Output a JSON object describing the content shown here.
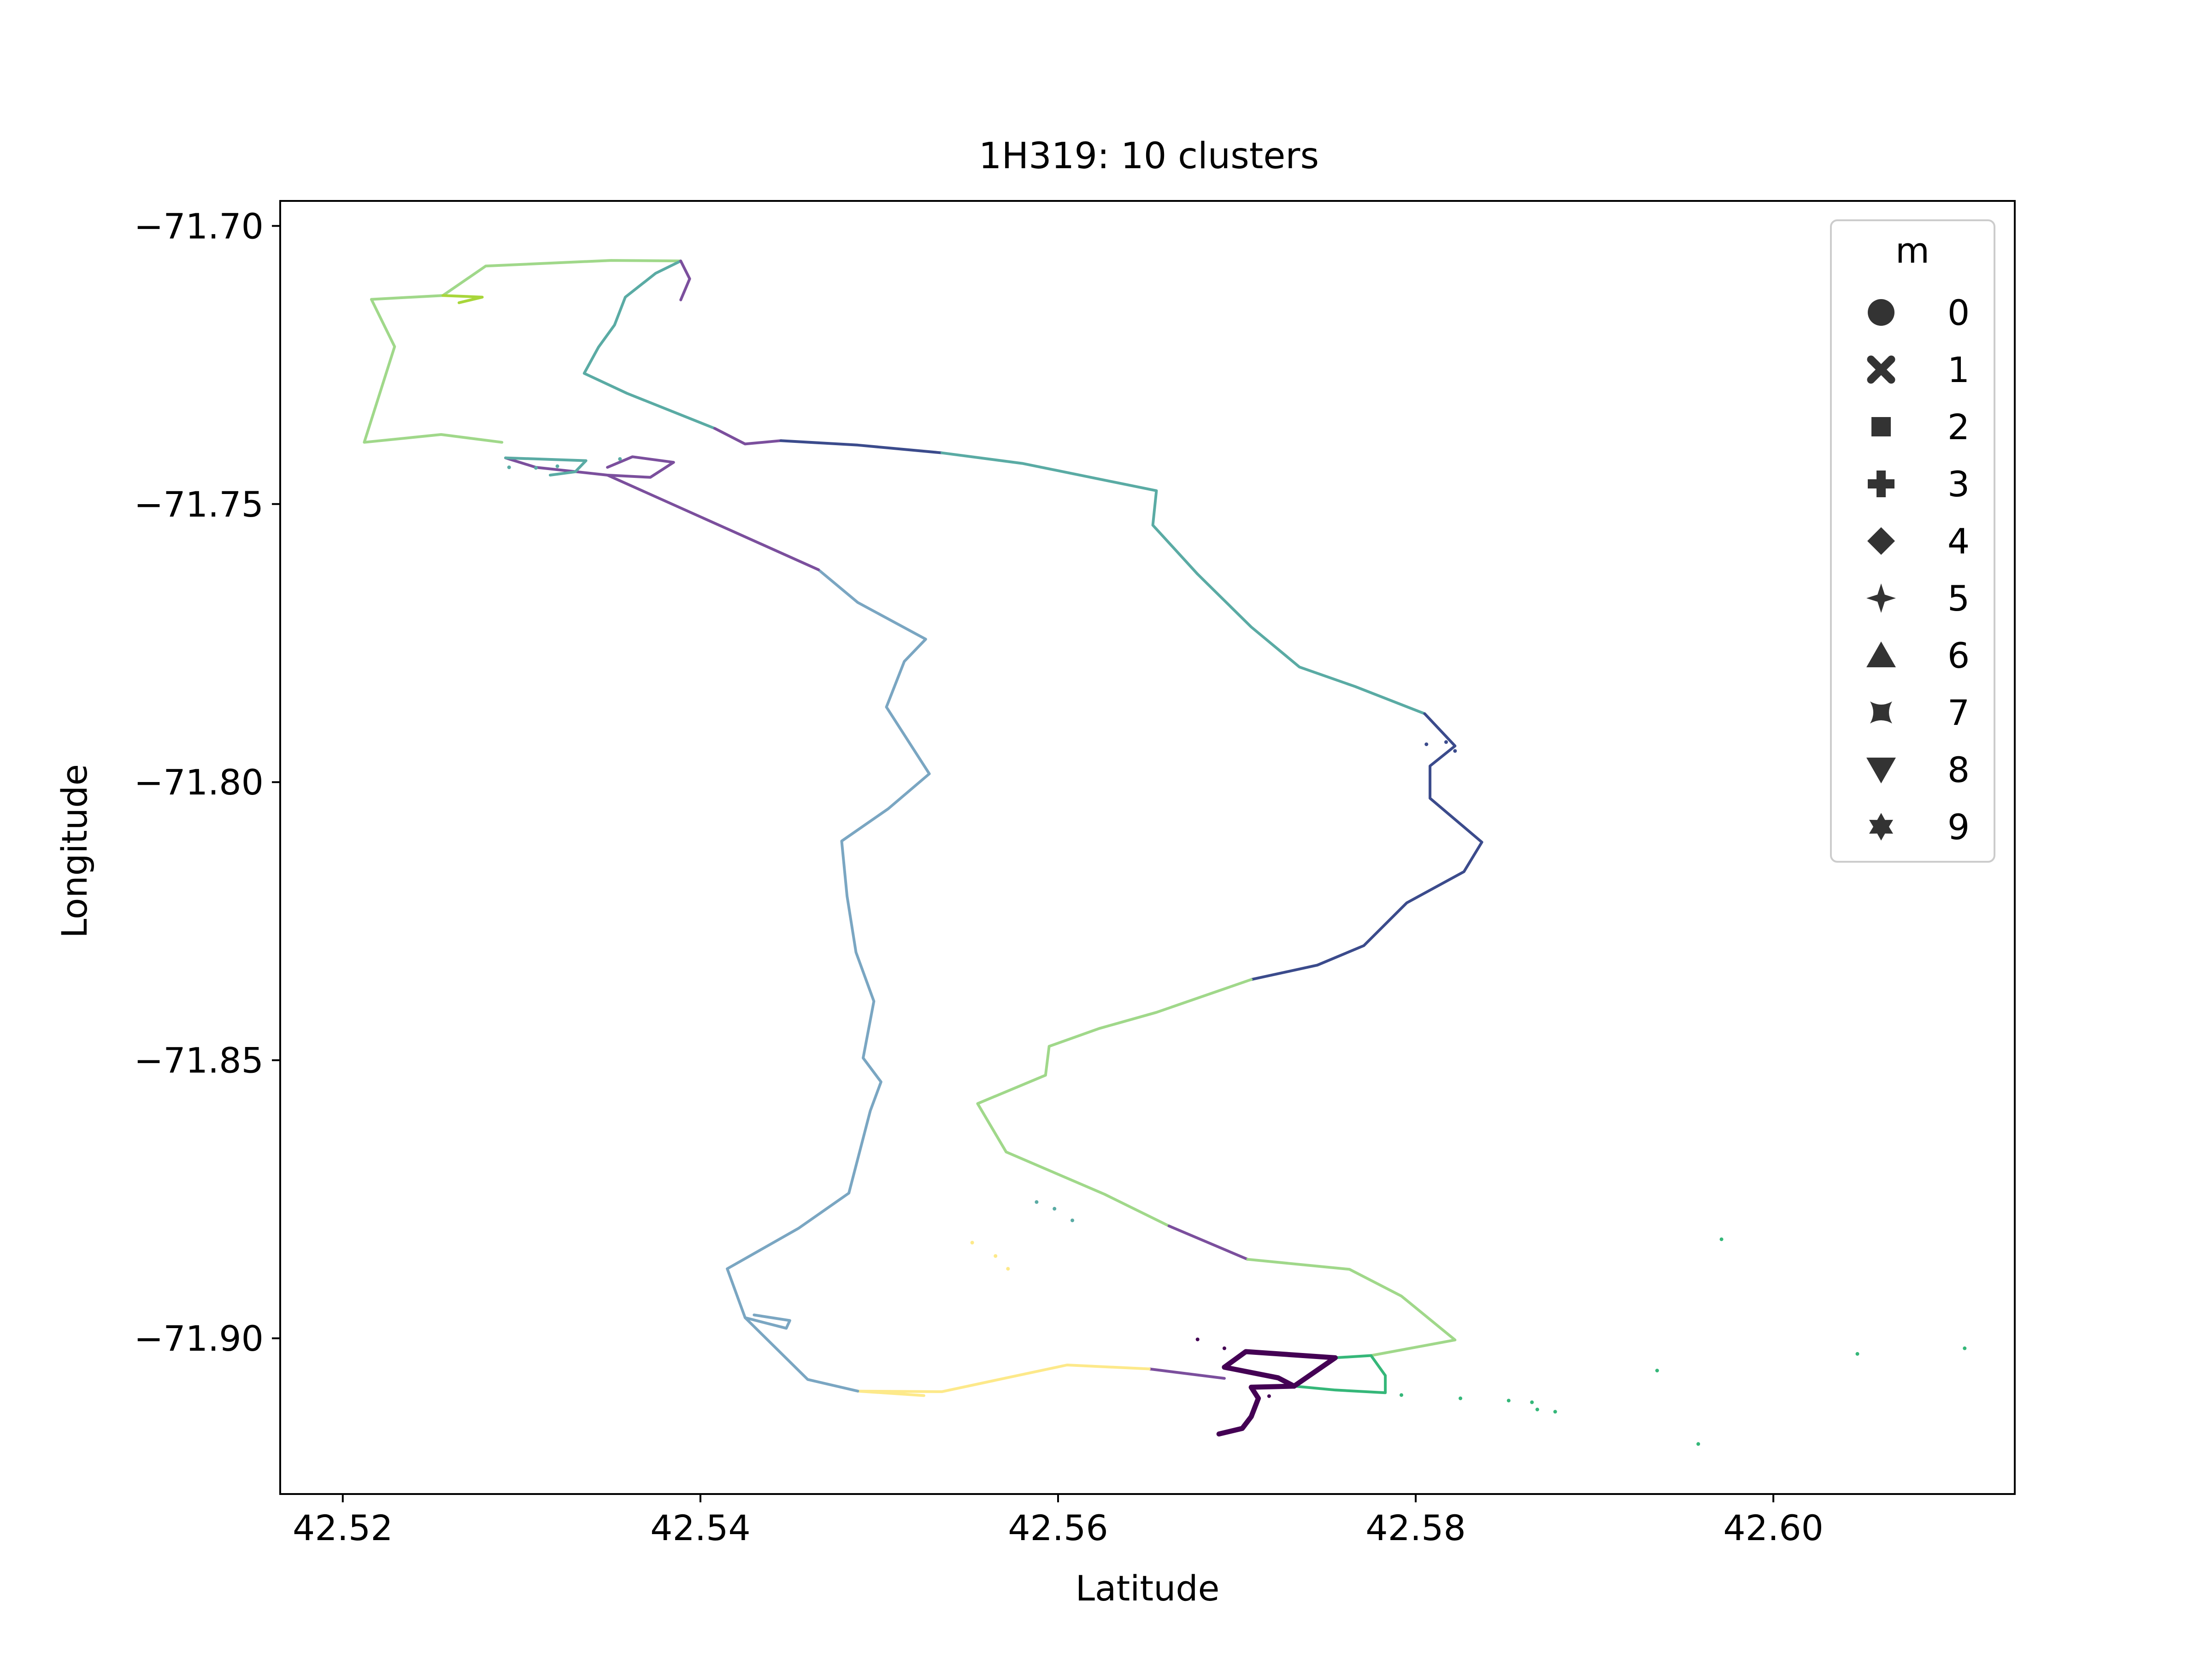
{
  "chart_data": {
    "type": "scatter",
    "title": "1H319: 10 clusters",
    "xlabel": "Latitude",
    "ylabel": "Longitude",
    "xlim": [
      42.5165,
      42.6135
    ],
    "ylim": [
      -71.928,
      -71.6955
    ],
    "x_ticks": [
      42.52,
      42.54,
      42.56,
      42.58,
      42.6
    ],
    "x_tick_labels": [
      "42.52",
      "42.54",
      "42.56",
      "42.58",
      "42.60"
    ],
    "y_ticks": [
      -71.7,
      -71.75,
      -71.8,
      -71.85,
      -71.9
    ],
    "y_tick_labels": [
      "−71.70",
      "−71.75",
      "−71.80",
      "−71.85",
      "−71.90"
    ],
    "grid": false,
    "legend": {
      "title": "m",
      "placement": "top-right",
      "entries": [
        {
          "label": "0",
          "marker": "circle"
        },
        {
          "label": "1",
          "marker": "x-cross"
        },
        {
          "label": "2",
          "marker": "square"
        },
        {
          "label": "3",
          "marker": "plus"
        },
        {
          "label": "4",
          "marker": "diamond"
        },
        {
          "label": "5",
          "marker": "four-point-star"
        },
        {
          "label": "6",
          "marker": "triangle-up"
        },
        {
          "label": "7",
          "marker": "concave-square"
        },
        {
          "label": "8",
          "marker": "triangle-down"
        },
        {
          "label": "9",
          "marker": "six-point-star"
        }
      ]
    },
    "colors": {
      "dark_purple": "#440154",
      "purple": "#7b4f9d",
      "indigo": "#3b4b8c",
      "steel_blue": "#7aa6c2",
      "teal": "#5aaba4",
      "green": "#35b779",
      "light_green": "#a0d88a",
      "lime": "#a8d63a",
      "yellow_green": "#c8e06a",
      "pale_yellow": "#fde98a"
    },
    "series": [
      {
        "color": "#a0d88a",
        "points": [
          [
            42.5389,
            -71.7063
          ],
          [
            42.535,
            -71.7062
          ],
          [
            42.528,
            -71.7072
          ],
          [
            42.5256,
            -71.7125
          ],
          [
            42.5216,
            -71.7132
          ],
          [
            42.5229,
            -71.7217
          ],
          [
            42.5212,
            -71.7389
          ],
          [
            42.5255,
            -71.7375
          ],
          [
            42.5289,
            -71.7389
          ]
        ]
      },
      {
        "color": "#a8d63a",
        "points": [
          [
            42.5256,
            -71.7125
          ],
          [
            42.5278,
            -71.7128
          ],
          [
            42.5265,
            -71.7138
          ]
        ]
      },
      {
        "color": "#5aaba4",
        "points": [
          [
            42.5389,
            -71.7063
          ],
          [
            42.5375,
            -71.7085
          ],
          [
            42.5358,
            -71.7128
          ],
          [
            42.5352,
            -71.7178
          ],
          [
            42.5343,
            -71.7218
          ],
          [
            42.5335,
            -71.7265
          ],
          [
            42.5359,
            -71.7301
          ],
          [
            42.5408,
            -71.7364
          ]
        ]
      },
      {
        "color": "#7b4f9d",
        "points": [
          [
            42.5389,
            -71.7063
          ],
          [
            42.5394,
            -71.7095
          ],
          [
            42.5389,
            -71.7133
          ]
        ]
      },
      {
        "color": "#7b4f9d",
        "points": [
          [
            42.5408,
            -71.7364
          ],
          [
            42.5425,
            -71.7392
          ],
          [
            42.5445,
            -71.7386
          ]
        ]
      },
      {
        "color": "#3b4b8c",
        "points": [
          [
            42.5445,
            -71.7386
          ],
          [
            42.5488,
            -71.7394
          ],
          [
            42.5535,
            -71.7408
          ]
        ]
      },
      {
        "color": "#5aaba4",
        "points": [
          [
            42.5535,
            -71.7408
          ],
          [
            42.558,
            -71.7427
          ],
          [
            42.5655,
            -71.7476
          ],
          [
            42.5653,
            -71.7538
          ],
          [
            42.5678,
            -71.7626
          ],
          [
            42.5708,
            -71.7721
          ],
          [
            42.5735,
            -71.7793
          ],
          [
            42.5766,
            -71.7828
          ],
          [
            42.5805,
            -71.7877
          ]
        ]
      },
      {
        "color": "#3b4b8c",
        "points": [
          [
            42.5805,
            -71.7877
          ],
          [
            42.5822,
            -71.7935
          ],
          [
            42.5808,
            -71.7971
          ],
          [
            42.5808,
            -71.8029
          ],
          [
            42.5837,
            -71.8108
          ],
          [
            42.5827,
            -71.8161
          ],
          [
            42.5795,
            -71.8217
          ],
          [
            42.5771,
            -71.8294
          ],
          [
            42.5745,
            -71.8329
          ],
          [
            42.5708,
            -71.8355
          ]
        ]
      },
      {
        "color": "#a0d88a",
        "points": [
          [
            42.5708,
            -71.8355
          ],
          [
            42.5655,
            -71.8414
          ],
          [
            42.5623,
            -71.8443
          ],
          [
            42.5595,
            -71.8475
          ],
          [
            42.5593,
            -71.8527
          ],
          [
            42.5555,
            -71.8578
          ],
          [
            42.5571,
            -71.8665
          ],
          [
            42.5626,
            -71.8741
          ],
          [
            42.5662,
            -71.8798
          ]
        ]
      },
      {
        "color": "#7b4f9d",
        "points": [
          [
            42.5662,
            -71.8798
          ],
          [
            42.5706,
            -71.8858
          ]
        ]
      },
      {
        "color": "#a0d88a",
        "points": [
          [
            42.5706,
            -71.8858
          ],
          [
            42.5763,
            -71.8876
          ],
          [
            42.5792,
            -71.8924
          ],
          [
            42.5822,
            -71.9003
          ],
          [
            42.5775,
            -71.9031
          ]
        ]
      },
      {
        "color": "#35b779",
        "points": [
          [
            42.5755,
            -71.9035
          ],
          [
            42.5775,
            -71.9031
          ],
          [
            42.5783,
            -71.9067
          ],
          [
            42.5783,
            -71.9098
          ],
          [
            42.5755,
            -71.9093
          ],
          [
            42.5732,
            -71.9086
          ]
        ]
      },
      {
        "color": "#440154",
        "points": [
          [
            42.5693,
            -71.9052
          ],
          [
            42.5705,
            -71.9024
          ],
          [
            42.5755,
            -71.9035
          ],
          [
            42.5732,
            -71.9086
          ],
          [
            42.5708,
            -71.9088
          ],
          [
            42.5712,
            -71.9108
          ],
          [
            42.5708,
            -71.9141
          ],
          [
            42.5703,
            -71.9162
          ],
          [
            42.569,
            -71.9172
          ]
        ]
      },
      {
        "color": "#440154",
        "points": [
          [
            42.5693,
            -71.9052
          ],
          [
            42.5723,
            -71.9071
          ],
          [
            42.5732,
            -71.9086
          ]
        ]
      },
      {
        "color": "#7b4f9d",
        "points": [
          [
            42.5693,
            -71.9072
          ],
          [
            42.5651,
            -71.9055
          ]
        ]
      },
      {
        "color": "#fde98a",
        "points": [
          [
            42.5651,
            -71.9055
          ],
          [
            42.5605,
            -71.9048
          ],
          [
            42.5535,
            -71.9096
          ],
          [
            42.5488,
            -71.9095
          ],
          [
            42.5525,
            -71.9103
          ]
        ]
      },
      {
        "color": "#7aa6c2",
        "points": [
          [
            42.5488,
            -71.9095
          ],
          [
            42.546,
            -71.9074
          ],
          [
            42.5425,
            -71.8963
          ],
          [
            42.5415,
            -71.8875
          ],
          [
            42.5455,
            -71.8802
          ],
          [
            42.5483,
            -71.8739
          ],
          [
            42.5495,
            -71.8591
          ],
          [
            42.5501,
            -71.8539
          ],
          [
            42.5491,
            -71.8496
          ],
          [
            42.5497,
            -71.8394
          ],
          [
            42.5487,
            -71.8306
          ],
          [
            42.5482,
            -71.8205
          ],
          [
            42.5479,
            -71.8106
          ],
          [
            42.5505,
            -71.8048
          ],
          [
            42.5528,
            -71.7985
          ],
          [
            42.5504,
            -71.7865
          ],
          [
            42.5514,
            -71.7783
          ],
          [
            42.5526,
            -71.7743
          ],
          [
            42.5488,
            -71.7677
          ],
          [
            42.5466,
            -71.7618
          ]
        ]
      },
      {
        "color": "#7b4f9d",
        "points": [
          [
            42.5466,
            -71.7618
          ],
          [
            42.5416,
            -71.7546
          ],
          [
            42.5348,
            -71.7448
          ],
          [
            42.5308,
            -71.7434
          ],
          [
            42.5291,
            -71.7417
          ]
        ]
      },
      {
        "color": "#7aa6c2",
        "points": [
          [
            42.5425,
            -71.8963
          ],
          [
            42.5448,
            -71.8982
          ],
          [
            42.545,
            -71.8968
          ],
          [
            42.543,
            -71.8958
          ]
        ]
      },
      {
        "color": "#7b4f9d",
        "points": [
          [
            42.5348,
            -71.7448
          ],
          [
            42.5372,
            -71.7452
          ],
          [
            42.5385,
            -71.7425
          ],
          [
            42.5362,
            -71.7415
          ],
          [
            42.5348,
            -71.7434
          ]
        ]
      },
      {
        "color": "#5aaba4",
        "points": [
          [
            42.5291,
            -71.7417
          ],
          [
            42.5336,
            -71.7422
          ],
          [
            42.533,
            -71.7442
          ],
          [
            42.5316,
            -71.7448
          ]
        ]
      }
    ],
    "scatter_points": [
      {
        "color": "#5aaba4",
        "points": [
          [
            42.5293,
            -71.7434
          ],
          [
            42.5308,
            -71.7435
          ],
          [
            42.532,
            -71.7432
          ],
          [
            42.5355,
            -71.7419
          ],
          [
            42.5588,
            -71.8755
          ],
          [
            42.5598,
            -71.8767
          ],
          [
            42.5608,
            -71.8788
          ]
        ]
      },
      {
        "color": "#35b779",
        "points": [
          [
            42.5792,
            -71.9102
          ],
          [
            42.5825,
            -71.9108
          ],
          [
            42.5852,
            -71.9112
          ],
          [
            42.5865,
            -71.9115
          ],
          [
            42.5868,
            -71.9128
          ],
          [
            42.5878,
            -71.9132
          ],
          [
            42.5935,
            -71.9058
          ],
          [
            42.5971,
            -71.8822
          ],
          [
            42.6047,
            -71.9028
          ],
          [
            42.5958,
            -71.919
          ],
          [
            42.6107,
            -71.9018
          ]
        ]
      },
      {
        "color": "#3b4b8c",
        "points": [
          [
            42.5806,
            -71.7932
          ],
          [
            42.5817,
            -71.7928
          ],
          [
            42.5822,
            -71.7944
          ]
        ]
      },
      {
        "color": "#440154",
        "points": [
          [
            42.5678,
            -71.9002
          ],
          [
            42.5693,
            -71.9018
          ],
          [
            42.5718,
            -71.9104
          ]
        ]
      },
      {
        "color": "#fde98a",
        "points": [
          [
            42.5572,
            -71.8875
          ],
          [
            42.5552,
            -71.8828
          ],
          [
            42.5565,
            -71.8852
          ]
        ]
      }
    ]
  }
}
